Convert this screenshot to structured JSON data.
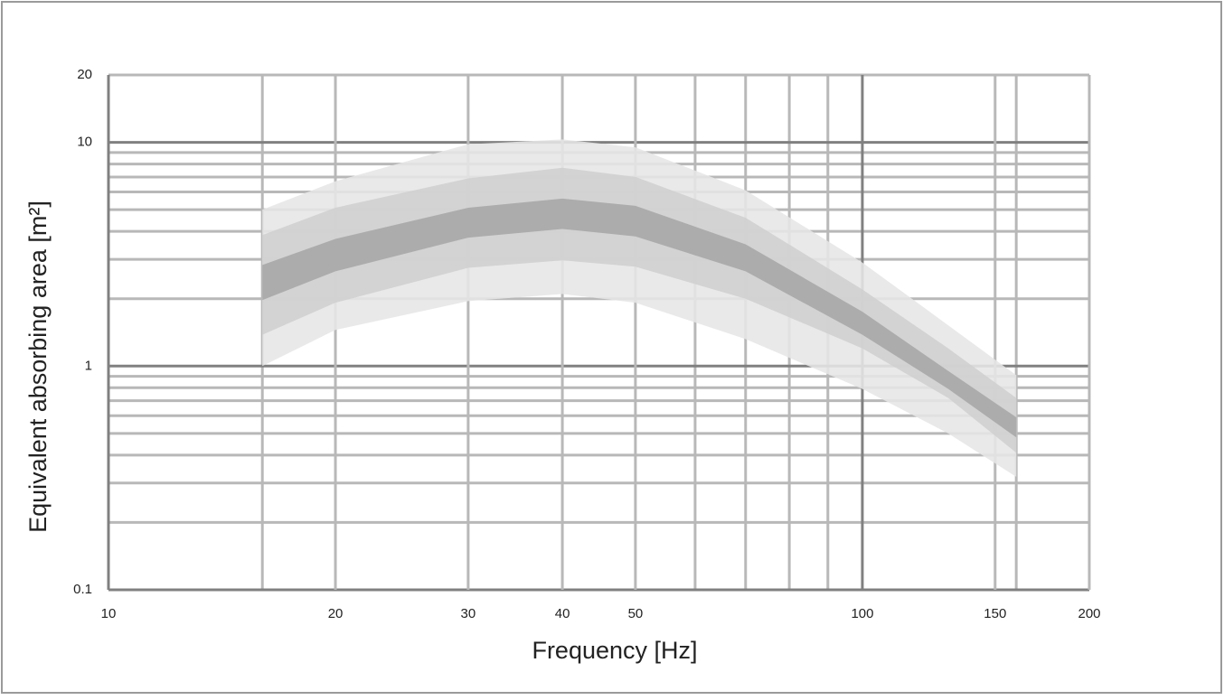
{
  "chart_data": {
    "type": "band",
    "x_label": "Frequency [Hz]",
    "y_label": "Equivalent absorbing area  [m²]",
    "x_scale": "log",
    "y_scale": "log",
    "grid": true,
    "xlim": [
      10,
      200
    ],
    "ylim": [
      0.1,
      20
    ],
    "xticks": [
      10,
      20,
      30,
      40,
      50,
      100,
      150,
      200
    ],
    "yticks": [
      0.1,
      1,
      10,
      20
    ],
    "x_minor_grid": [
      16,
      60,
      70,
      80,
      90,
      160
    ],
    "y_minor_grid": [
      0.2,
      0.3,
      0.4,
      0.5,
      0.6,
      0.7,
      0.8,
      0.9,
      2,
      3,
      4,
      5,
      6,
      7,
      8,
      9
    ],
    "x": [
      16,
      20,
      30,
      40,
      50,
      70,
      100,
      130,
      160
    ],
    "series": [
      {
        "color": "#e6e6e6",
        "upper": [
          5.0,
          6.7,
          9.8,
          10.3,
          9.5,
          6.1,
          2.9,
          1.52,
          0.91
        ],
        "lower": [
          1.0,
          1.45,
          1.95,
          2.1,
          1.92,
          1.32,
          0.79,
          0.5,
          0.32
        ]
      },
      {
        "color": "#cfcfcf",
        "upper": [
          3.85,
          5.1,
          6.9,
          7.7,
          7.0,
          4.6,
          2.2,
          1.2,
          0.72
        ],
        "lower": [
          1.38,
          1.92,
          2.75,
          2.97,
          2.78,
          2.0,
          1.2,
          0.72,
          0.41
        ]
      },
      {
        "color": "#a6a6a6",
        "upper": [
          2.83,
          3.7,
          5.1,
          5.6,
          5.2,
          3.5,
          1.75,
          0.95,
          0.59
        ],
        "lower": [
          1.97,
          2.65,
          3.75,
          4.1,
          3.8,
          2.65,
          1.38,
          0.79,
          0.48
        ]
      }
    ]
  }
}
